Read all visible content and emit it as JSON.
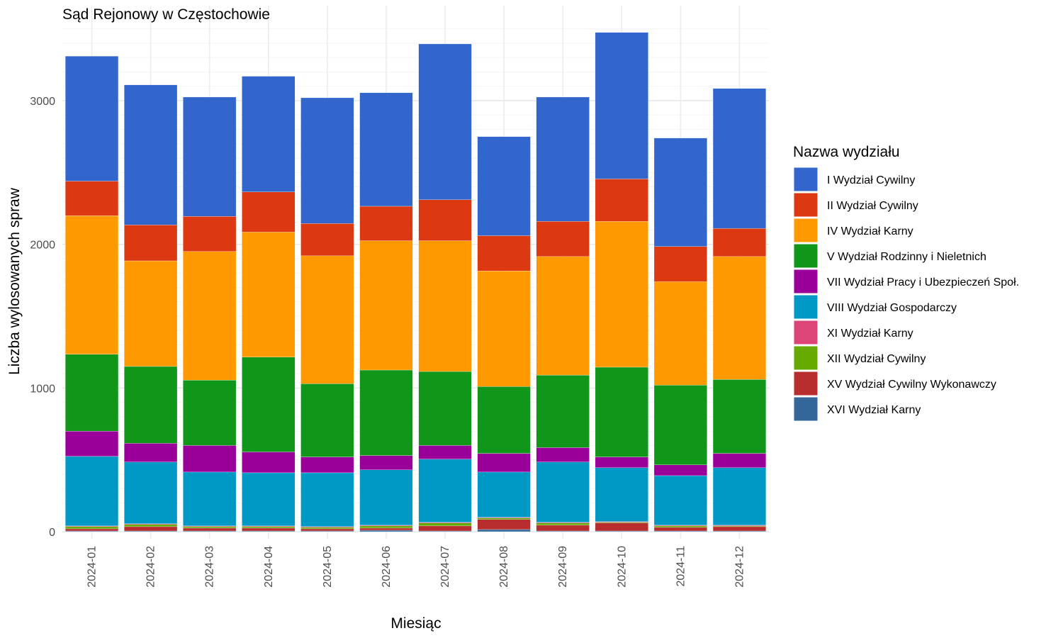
{
  "chart_data": {
    "type": "bar",
    "stacked": true,
    "title": "Sąd Rejonowy w Częstochowie",
    "xlabel": "Miesiąc",
    "ylabel": "Liczba wylosowanych spraw",
    "ylim": [
      0,
      3530
    ],
    "yticks": [
      0,
      1000,
      2000,
      3000
    ],
    "grid": true,
    "legend_title": "Nazwa wydziału",
    "legend_position": "right",
    "categories": [
      "2024-01",
      "2024-02",
      "2024-03",
      "2024-04",
      "2024-05",
      "2024-06",
      "2024-07",
      "2024-08",
      "2024-09",
      "2024-10",
      "2024-11",
      "2024-12"
    ],
    "series": [
      {
        "name": "XVI Wydział Karny",
        "color": "#336699",
        "values": [
          5,
          5,
          5,
          5,
          5,
          10,
          5,
          15,
          5,
          5,
          5,
          5
        ]
      },
      {
        "name": "XV Wydział Cywilny Wykonawczy",
        "color": "#b82e2e",
        "values": [
          15,
          30,
          20,
          20,
          15,
          15,
          35,
          70,
          40,
          55,
          25,
          30
        ]
      },
      {
        "name": "XII Wydział Cywilny",
        "color": "#66aa00",
        "values": [
          15,
          15,
          10,
          10,
          10,
          15,
          20,
          10,
          15,
          5,
          10,
          5
        ]
      },
      {
        "name": "XI Wydział Karny",
        "color": "#dd4477",
        "values": [
          5,
          5,
          5,
          5,
          5,
          5,
          5,
          5,
          5,
          5,
          5,
          5
        ]
      },
      {
        "name": "VIII Wydział Gospodarczy",
        "color": "#0099c6",
        "values": [
          485,
          430,
          375,
          370,
          375,
          385,
          440,
          315,
          420,
          375,
          345,
          400
        ]
      },
      {
        "name": "VII Wydział Pracy i Ubezpieczeń Społ.",
        "color": "#990099",
        "values": [
          175,
          130,
          185,
          145,
          110,
          100,
          95,
          130,
          100,
          75,
          75,
          100
        ]
      },
      {
        "name": "V Wydział Rodzinny i Nieletnich",
        "color": "#109618",
        "values": [
          535,
          535,
          455,
          660,
          510,
          595,
          515,
          465,
          505,
          625,
          555,
          515
        ]
      },
      {
        "name": "IV Wydział Karny",
        "color": "#ff9900",
        "values": [
          965,
          735,
          895,
          870,
          890,
          900,
          910,
          805,
          825,
          1015,
          720,
          855
        ]
      },
      {
        "name": "II Wydział Cywilny",
        "color": "#dc3912",
        "values": [
          240,
          250,
          245,
          280,
          225,
          240,
          285,
          245,
          245,
          295,
          245,
          195
        ]
      },
      {
        "name": "I Wydział Cywilny",
        "color": "#3366cc",
        "values": [
          870,
          975,
          830,
          805,
          875,
          790,
          1085,
          690,
          865,
          1020,
          755,
          975
        ]
      }
    ],
    "legend_order": [
      "I Wydział Cywilny",
      "II Wydział Cywilny",
      "IV Wydział Karny",
      "V Wydział Rodzinny i Nieletnich",
      "VII Wydział Pracy i Ubezpieczeń Społ.",
      "VIII Wydział Gospodarczy",
      "XI Wydział Karny",
      "XII Wydział Cywilny",
      "XV Wydział Cywilny Wykonawczy",
      "XVI Wydział Karny"
    ]
  }
}
